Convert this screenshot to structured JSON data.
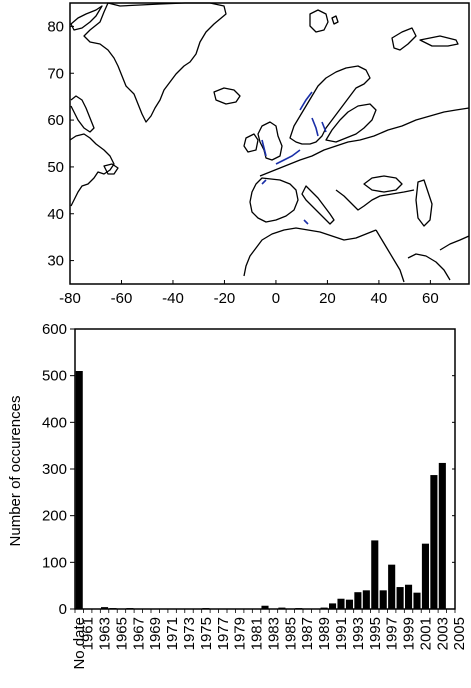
{
  "chart_data": [
    {
      "type": "map",
      "x_ticks": [
        "-80",
        "-60",
        "-40",
        "-20",
        "0",
        "20",
        "40",
        "60"
      ],
      "y_ticks": [
        "30",
        "40",
        "50",
        "60",
        "70",
        "80"
      ],
      "xlim": [
        -80,
        75
      ],
      "ylim": [
        25,
        85
      ],
      "colors": {
        "coastline": "#000000",
        "occurrence": "#1a2fa8"
      }
    },
    {
      "type": "bar",
      "ylabel": "Number of occurences",
      "ylim": [
        0,
        600
      ],
      "y_ticks": [
        "0",
        "100",
        "200",
        "300",
        "400",
        "500",
        "600"
      ],
      "x_tick_labels": [
        "No date",
        "1961",
        "1963",
        "1965",
        "1967",
        "1969",
        "1971",
        "1973",
        "1975",
        "1977",
        "1979",
        "1981",
        "1983",
        "1985",
        "1987",
        "1989",
        "1991",
        "1993",
        "1995",
        "1997",
        "1999",
        "2001",
        "2003",
        "2005"
      ],
      "categories": [
        "No date",
        "1961",
        "1962",
        "1963",
        "1964",
        "1965",
        "1966",
        "1967",
        "1968",
        "1969",
        "1970",
        "1971",
        "1972",
        "1973",
        "1974",
        "1975",
        "1976",
        "1977",
        "1978",
        "1979",
        "1980",
        "1981",
        "1982",
        "1983",
        "1984",
        "1985",
        "1986",
        "1987",
        "1988",
        "1989",
        "1990",
        "1991",
        "1992",
        "1993",
        "1994",
        "1995",
        "1996",
        "1997",
        "1998",
        "1999",
        "2000",
        "2001",
        "2002",
        "2003",
        "2004"
      ],
      "values": [
        510,
        0,
        0,
        4,
        2,
        0,
        2,
        0,
        0,
        0,
        0,
        0,
        0,
        0,
        0,
        2,
        0,
        0,
        0,
        0,
        0,
        0,
        7,
        0,
        3,
        0,
        2,
        0,
        0,
        3,
        12,
        22,
        20,
        36,
        40,
        147,
        40,
        95,
        47,
        52,
        35,
        140,
        287,
        313,
        0
      ],
      "bar_color": "#000000"
    }
  ]
}
